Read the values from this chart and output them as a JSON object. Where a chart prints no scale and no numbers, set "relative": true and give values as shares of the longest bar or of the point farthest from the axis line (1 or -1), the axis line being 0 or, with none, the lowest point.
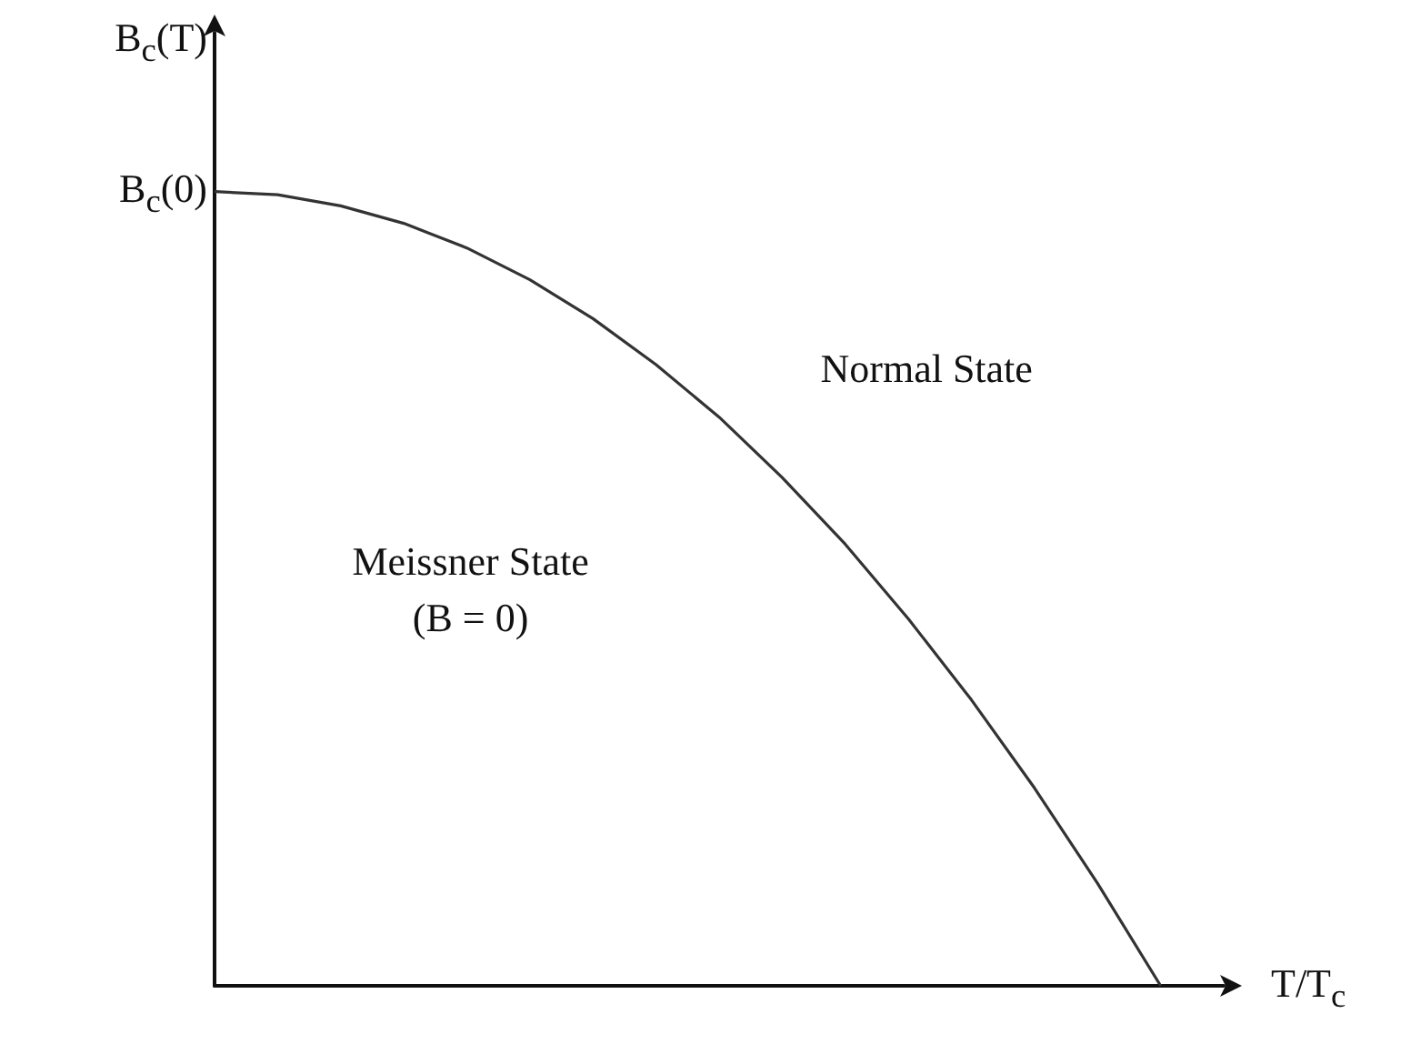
{
  "chart_data": {
    "type": "line",
    "relative": true,
    "ylabel": "B$_{c}$(T)",
    "xlabel": "T/T$_{c}$",
    "categories": [
      null,
      null,
      null,
      null,
      null,
      null,
      null,
      null,
      null,
      null,
      null,
      null,
      null,
      null,
      null,
      null,
      null
    ],
    "series": [
      {
        "color": "#333333",
        "values": [
          1,
          0.996,
          0.982,
          0.96,
          0.929,
          0.889,
          0.84,
          0.782,
          0.716,
          0.64,
          0.556,
          0.462,
          0.36,
          0.249,
          0.129,
          0,
          null
        ]
      }
    ],
    "annotations": [
      "B$_{c}$(0)",
      "Normal State",
      "Meissner State",
      "(B = 0)"
    ]
  }
}
